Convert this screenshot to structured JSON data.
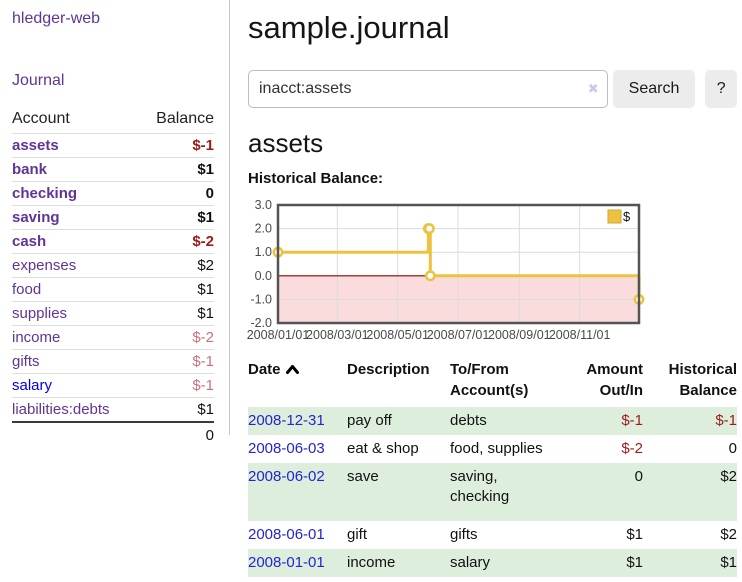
{
  "sidebar": {
    "brand": "hledger-web",
    "nav": {
      "journal": "Journal"
    },
    "accounts": {
      "headers": {
        "account": "Account",
        "balance": "Balance"
      },
      "rows": [
        {
          "account": "assets",
          "balance": "$-1",
          "indent": 1,
          "emphasis": true,
          "tone": "negative-strong"
        },
        {
          "account": "bank",
          "balance": "$1",
          "indent": 2,
          "emphasis": true,
          "tone": "normal"
        },
        {
          "account": "checking",
          "balance": "0",
          "indent": 3,
          "emphasis": true,
          "tone": "normal"
        },
        {
          "account": "saving",
          "balance": "$1",
          "indent": 3,
          "emphasis": true,
          "tone": "normal"
        },
        {
          "account": "cash",
          "balance": "$-2",
          "indent": 2,
          "emphasis": true,
          "tone": "negative-strong"
        },
        {
          "account": "expenses",
          "balance": "$2",
          "indent": 1,
          "emphasis": false,
          "tone": "normal"
        },
        {
          "account": "food",
          "balance": "$1",
          "indent": 2,
          "emphasis": false,
          "tone": "normal"
        },
        {
          "account": "supplies",
          "balance": "$1",
          "indent": 2,
          "emphasis": false,
          "tone": "normal"
        },
        {
          "account": "income",
          "balance": "$-2",
          "indent": 1,
          "emphasis": false,
          "tone": "negative-soft"
        },
        {
          "account": "gifts",
          "balance": "$-1",
          "indent": 2,
          "emphasis": false,
          "tone": "negative-soft"
        },
        {
          "account": "salary",
          "balance": "$-1",
          "indent": 2,
          "emphasis": false,
          "tone": "negative-soft",
          "link_tone": "unvisited"
        },
        {
          "account": "liabilities:debts",
          "balance": "$1",
          "indent": 1,
          "emphasis": false,
          "tone": "normal"
        }
      ],
      "total": "0"
    }
  },
  "header": {
    "title": "sample.journal"
  },
  "search": {
    "value": "inacct:assets",
    "clear_icon": "✖",
    "button_label": "Search",
    "help_label": "?"
  },
  "account_page": {
    "heading": "assets",
    "chart_label": "Historical Balance:"
  },
  "chart_data": {
    "type": "line",
    "title": "Historical Balance",
    "series": [
      {
        "name": "$",
        "color": "#edc240",
        "steps": true,
        "points": [
          [
            "2008-01-01",
            1
          ],
          [
            "2008-06-01",
            2
          ],
          [
            "2008-06-02",
            2
          ],
          [
            "2008-06-03",
            0
          ],
          [
            "2008-12-31",
            -1
          ]
        ]
      }
    ],
    "xlim": [
      "2008-01-01",
      "2008-12-31"
    ],
    "ylim": [
      -2,
      3
    ],
    "x_tick_labels": [
      "2008/01/01",
      "2008/03/01",
      "2008/05/01",
      "2008/07/01",
      "2008/09/01",
      "2008/11/01"
    ],
    "y_ticks": [
      3,
      2,
      1,
      0,
      -1,
      -2
    ],
    "y_tick_labels": [
      "3.0",
      "2.0",
      "1.0",
      "0.0",
      "-1.0",
      "-2.0"
    ],
    "grid": true,
    "legend_position": "top-right",
    "colors": {
      "border": "#545454",
      "grid": "#dcdcdc",
      "zero_line": "#8b0000",
      "negative_region": "#fbdcdc",
      "tick_text": "#4a4a4a",
      "legend_swatch_border": "#cba63d"
    }
  },
  "register": {
    "columns": [
      {
        "line1": "Date",
        "line2": "",
        "sort": "ascending"
      },
      {
        "line1": "Description",
        "line2": ""
      },
      {
        "line1": "To/From",
        "line2": "Account(s)"
      },
      {
        "line1": "Amount",
        "line2": "Out/In"
      },
      {
        "line1": "Historical",
        "line2": "Balance"
      }
    ],
    "rows": [
      {
        "date": "2008-12-31",
        "description": "pay off",
        "accounts": "debts",
        "amount": "$-1",
        "balance": "$-1",
        "amount_tone": "negative",
        "balance_tone": "negative",
        "shaded": true,
        "tall": false
      },
      {
        "date": "2008-06-03",
        "description": "eat & shop",
        "accounts": "food, supplies",
        "amount": "$-2",
        "balance": "0",
        "amount_tone": "negative",
        "balance_tone": "normal",
        "shaded": false,
        "tall": false
      },
      {
        "date": "2008-06-02",
        "description": "save",
        "accounts": "saving,\nchecking",
        "amount": "0",
        "balance": "$2",
        "amount_tone": "normal",
        "balance_tone": "normal",
        "shaded": true,
        "tall": true
      },
      {
        "date": "2008-06-01",
        "description": "gift",
        "accounts": "gifts",
        "amount": "$1",
        "balance": "$2",
        "amount_tone": "normal",
        "balance_tone": "normal",
        "shaded": false,
        "tall": false
      },
      {
        "date": "2008-01-01",
        "description": "income",
        "accounts": "salary",
        "amount": "$1",
        "balance": "$1",
        "amount_tone": "normal",
        "balance_tone": "normal",
        "shaded": true,
        "tall": false
      }
    ]
  },
  "colors": {
    "link_purple": "#5f3596",
    "link_blue_unvisited": "#0202e8",
    "date_link_blue": "#2424d0",
    "negative_strong_red": "#9c1b1b",
    "negative_soft_rose": "#c4737b",
    "row_shade_green": "#ddeedd",
    "button_gray": "#ececec"
  }
}
